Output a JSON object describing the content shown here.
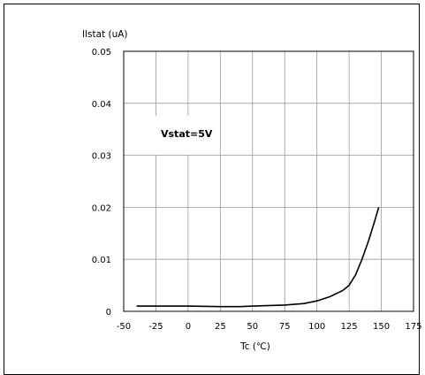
{
  "chart_data": {
    "type": "line",
    "ylabel": "Ilstat (uA)",
    "xlabel": "Tc (℃)",
    "annotation": "Vstat=5V",
    "xlim": [
      -50,
      175
    ],
    "ylim": [
      0,
      0.05
    ],
    "x_ticks": [
      "-50",
      "-25",
      "0",
      "25",
      "50",
      "75",
      "100",
      "125",
      "150",
      "175"
    ],
    "x_tick_values": [
      -50,
      -25,
      0,
      25,
      50,
      75,
      100,
      125,
      150,
      175
    ],
    "y_ticks": [
      "0",
      "0.01",
      "0.02",
      "0.03",
      "0.04",
      "0.05"
    ],
    "y_tick_values": [
      0,
      0.01,
      0.02,
      0.03,
      0.04,
      0.05
    ],
    "grid": true,
    "series": [
      {
        "x": [
          -40,
          -25,
          0,
          25,
          40,
          50,
          75,
          90,
          100,
          110,
          120,
          125,
          130,
          135,
          140,
          145,
          148
        ],
        "y": [
          0.001,
          0.001,
          0.001,
          0.0009,
          0.0009,
          0.001,
          0.0012,
          0.0015,
          0.002,
          0.0028,
          0.004,
          0.005,
          0.007,
          0.01,
          0.0135,
          0.0175,
          0.02
        ],
        "color": "#000000"
      }
    ]
  }
}
